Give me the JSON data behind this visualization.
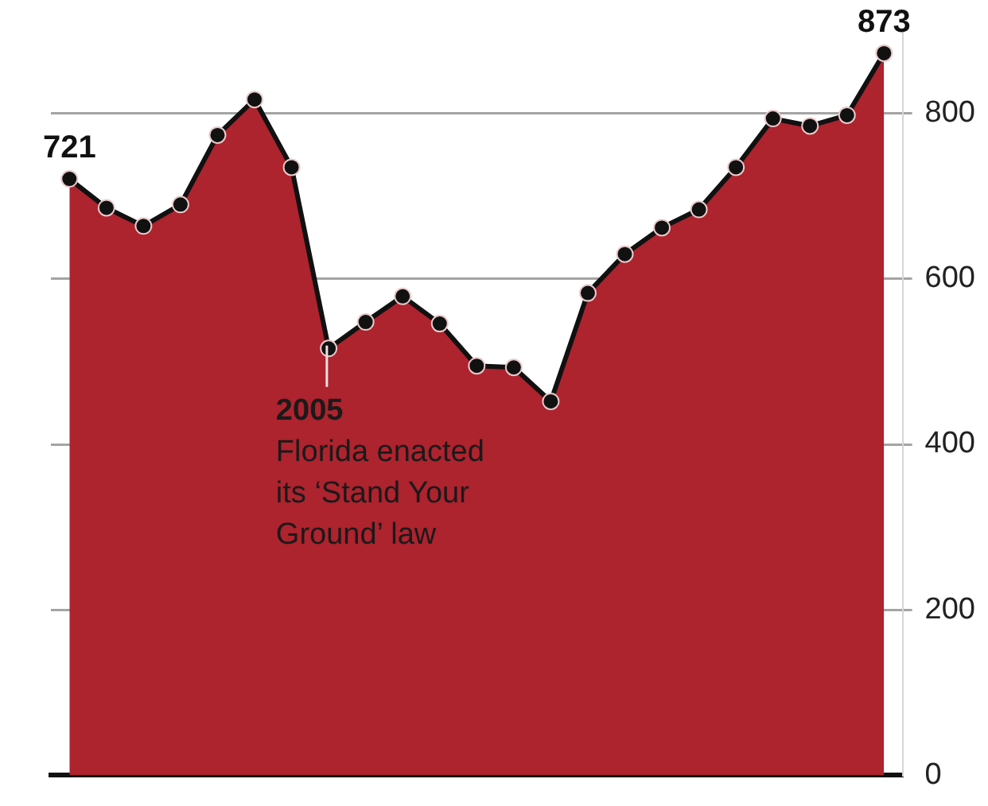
{
  "chart_data": {
    "type": "area",
    "categories": [
      null,
      null,
      null,
      null,
      null,
      null,
      null,
      null,
      null,
      null,
      null,
      null,
      null,
      null,
      null,
      null,
      null,
      null,
      null,
      null,
      null,
      null,
      null
    ],
    "series": [
      {
        "color": "#ad232e",
        "values": [
          721,
          686,
          664,
          690,
          774,
          817,
          735,
          516,
          548,
          579,
          546,
          495,
          493,
          452,
          583,
          630,
          662,
          684,
          735,
          794,
          785,
          798,
          873
        ],
        "value_labels": [
          "721",
          null,
          null,
          null,
          null,
          null,
          null,
          null,
          null,
          null,
          null,
          null,
          null,
          null,
          null,
          null,
          null,
          null,
          null,
          null,
          null,
          null,
          "873"
        ]
      }
    ],
    "ylim": [
      0,
      900
    ],
    "yticks": [
      0,
      200,
      400,
      600,
      800
    ],
    "grid": "y",
    "tick_labels": "y",
    "marker": "circle",
    "legend": false,
    "annotations": [
      "2005\nFlorida enacted\nits ‘Stand Your\nGround’ law"
    ]
  }
}
